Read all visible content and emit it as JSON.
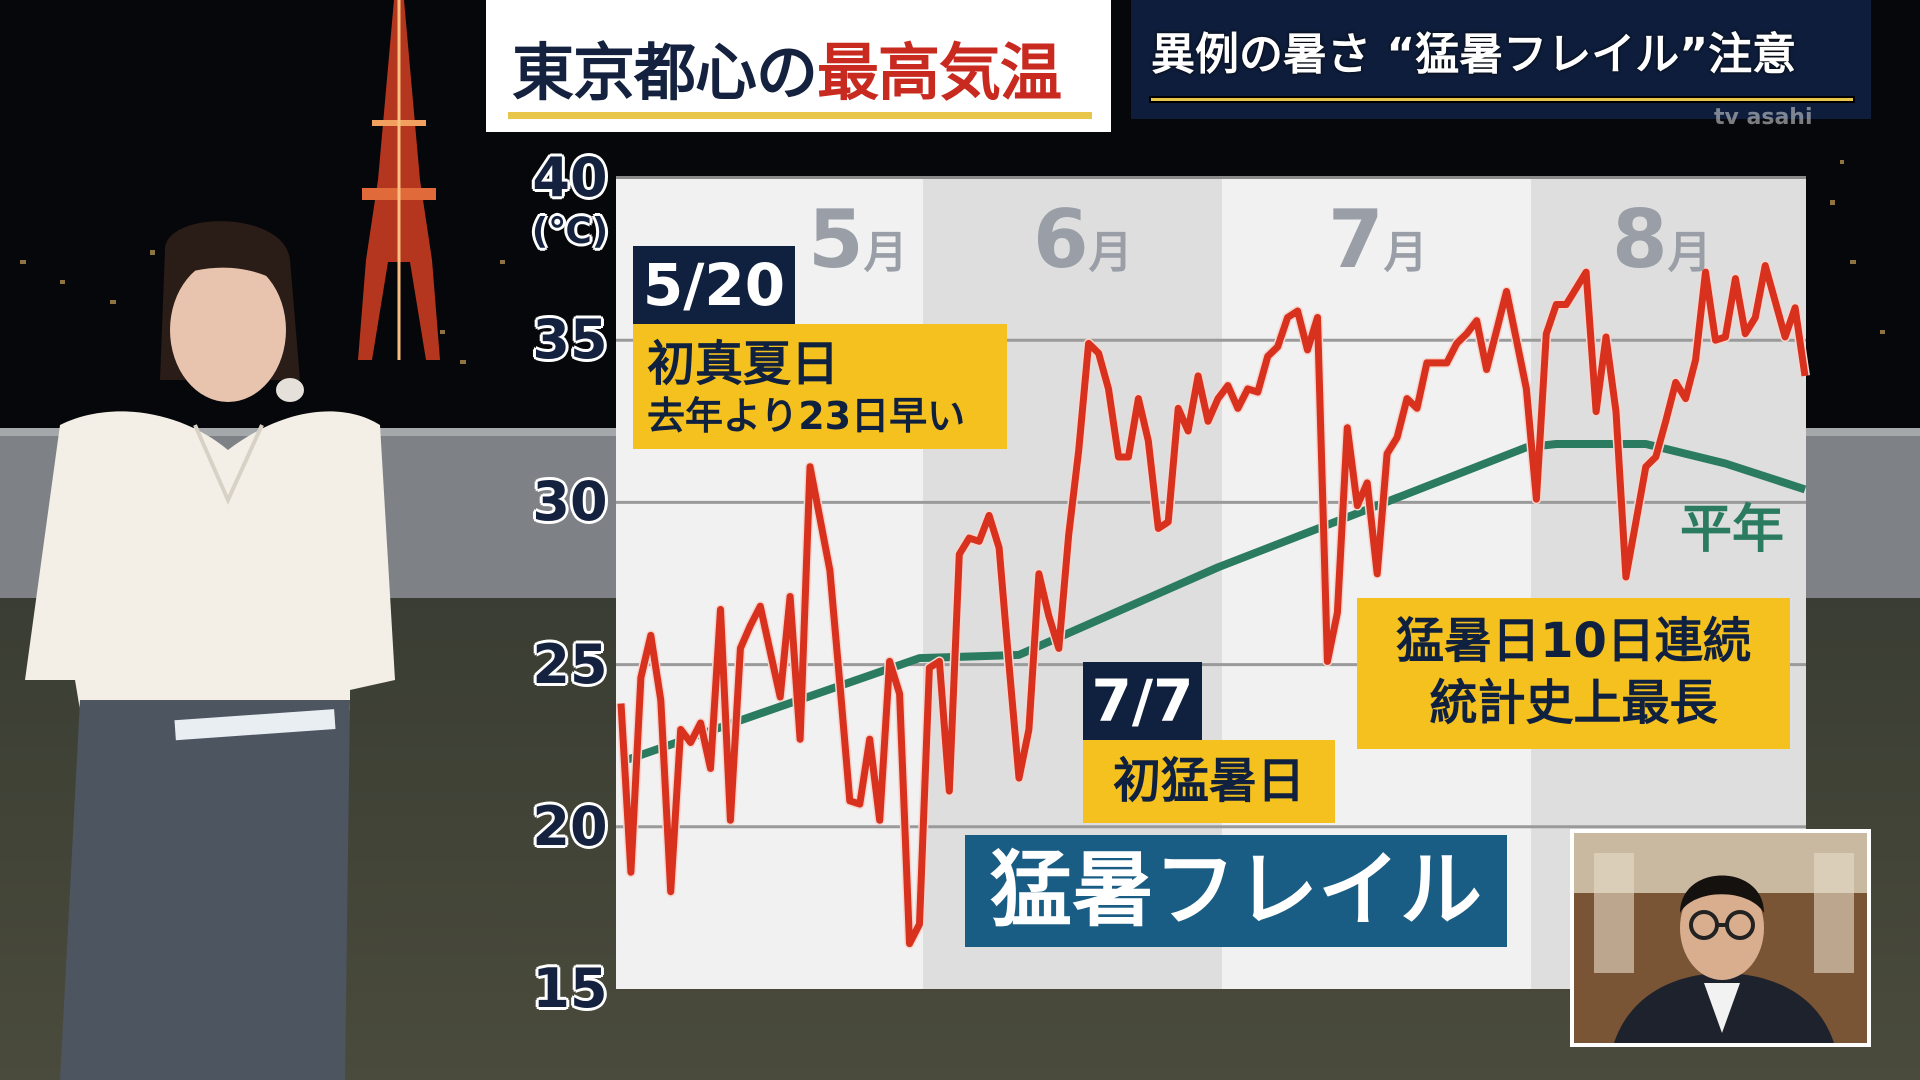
{
  "header": {
    "title_part1": "東京都心の",
    "title_part2": "最高気温",
    "banner": "異例の暑さ “猛暑フレイル”注意",
    "watermark": "tv asahi"
  },
  "annotations": {
    "may20_date": "5/20",
    "may20_line1": "初真夏日",
    "may20_line2": "去年より23日早い",
    "jul7_date": "7/7",
    "jul7_label": "初猛暑日",
    "streak_line1": "猛暑日10日連続",
    "streak_line2": "統計史上最長",
    "headline": "猛暑フレイル"
  },
  "colors": {
    "observed": "#d8321e",
    "normal": "#2a7b60",
    "navy": "#10203f",
    "yellow": "#f4c11e",
    "title_red": "#c92a1f",
    "headline_blue": "#1a5d84"
  },
  "chart_data": {
    "type": "line",
    "title": "東京都心の最高気温",
    "ylabel": "(℃)",
    "ylim": [
      15,
      40
    ],
    "yticks": [
      "40",
      "35",
      "30",
      "25",
      "20",
      "15"
    ],
    "ytick_values": [
      40,
      35,
      30,
      25,
      20,
      15
    ],
    "months": [
      "5月",
      "6月",
      "7月",
      "8月"
    ],
    "month_numbers": [
      "5",
      "6",
      "7",
      "8"
    ],
    "month_unit": "月",
    "grid": true,
    "series": [
      {
        "color": "#d8321e",
        "points": [
          [
            "5/1",
            23.8
          ],
          [
            "5/2",
            18.6
          ],
          [
            "5/3",
            24.6
          ],
          [
            "5/4",
            25.9
          ],
          [
            "5/5",
            23.9
          ],
          [
            "5/6",
            18.0
          ],
          [
            "5/7",
            23.0
          ],
          [
            "5/8",
            22.6
          ],
          [
            "5/9",
            23.2
          ],
          [
            "5/10",
            21.8
          ],
          [
            "5/11",
            26.7
          ],
          [
            "5/12",
            20.2
          ],
          [
            "5/13",
            25.5
          ],
          [
            "5/14",
            26.2
          ],
          [
            "5/15",
            26.8
          ],
          [
            "5/16",
            25.4
          ],
          [
            "5/17",
            24.0
          ],
          [
            "5/18",
            27.1
          ],
          [
            "5/19",
            22.7
          ],
          [
            "5/20",
            31.1
          ],
          [
            "5/21",
            29.5
          ],
          [
            "5/22",
            27.9
          ],
          [
            "5/23",
            24.4
          ],
          [
            "5/24",
            20.8
          ],
          [
            "5/25",
            20.7
          ],
          [
            "5/26",
            22.7
          ],
          [
            "5/27",
            20.2
          ],
          [
            "5/28",
            25.1
          ],
          [
            "5/29",
            24.1
          ],
          [
            "5/30",
            16.4
          ],
          [
            "5/31",
            17.0
          ],
          [
            "6/1",
            24.9
          ],
          [
            "6/2",
            25.1
          ],
          [
            "6/3",
            21.1
          ],
          [
            "6/4",
            28.4
          ],
          [
            "6/5",
            28.9
          ],
          [
            "6/6",
            28.8
          ],
          [
            "6/7",
            29.6
          ],
          [
            "6/8",
            28.6
          ],
          [
            "6/9",
            25.0
          ],
          [
            "6/10",
            21.5
          ],
          [
            "6/11",
            23.0
          ],
          [
            "6/12",
            27.8
          ],
          [
            "6/13",
            26.5
          ],
          [
            "6/14",
            25.5
          ],
          [
            "6/15",
            29.0
          ],
          [
            "6/16",
            31.6
          ],
          [
            "6/17",
            34.9
          ],
          [
            "6/18",
            34.6
          ],
          [
            "6/19",
            33.5
          ],
          [
            "6/20",
            31.4
          ],
          [
            "6/21",
            31.4
          ],
          [
            "6/22",
            33.2
          ],
          [
            "6/23",
            31.9
          ],
          [
            "6/24",
            29.2
          ],
          [
            "6/25",
            29.4
          ],
          [
            "6/26",
            32.9
          ],
          [
            "6/27",
            32.2
          ],
          [
            "6/28",
            33.9
          ],
          [
            "6/29",
            32.5
          ],
          [
            "6/30",
            33.2
          ],
          [
            "7/1",
            33.6
          ],
          [
            "7/2",
            32.9
          ],
          [
            "7/3",
            33.5
          ],
          [
            "7/4",
            33.4
          ],
          [
            "7/5",
            34.5
          ],
          [
            "7/6",
            34.8
          ],
          [
            "7/7",
            35.7
          ],
          [
            "7/8",
            35.9
          ],
          [
            "7/9",
            34.7
          ],
          [
            "7/10",
            35.7
          ],
          [
            "7/11",
            25.1
          ],
          [
            "7/12",
            26.6
          ],
          [
            "7/13",
            32.3
          ],
          [
            "7/14",
            29.9
          ],
          [
            "7/15",
            30.6
          ],
          [
            "7/16",
            27.8
          ],
          [
            "7/17",
            31.5
          ],
          [
            "7/18",
            32.0
          ],
          [
            "7/19",
            33.2
          ],
          [
            "7/20",
            32.9
          ],
          [
            "7/21",
            34.3
          ],
          [
            "7/22",
            34.3
          ],
          [
            "7/23",
            34.3
          ],
          [
            "7/24",
            34.9
          ],
          [
            "7/25",
            35.2
          ],
          [
            "7/26",
            35.6
          ],
          [
            "7/27",
            34.1
          ],
          [
            "7/28",
            35.3
          ],
          [
            "7/29",
            36.5
          ],
          [
            "7/30",
            35.0
          ],
          [
            "7/31",
            33.5
          ],
          [
            "8/1",
            30.1
          ],
          [
            "8/2",
            35.2
          ],
          [
            "8/3",
            36.1
          ],
          [
            "8/4",
            36.1
          ],
          [
            "8/5",
            36.6
          ],
          [
            "8/6",
            37.1
          ],
          [
            "8/7",
            32.8
          ],
          [
            "8/8",
            35.1
          ],
          [
            "8/9",
            32.8
          ],
          [
            "8/10",
            27.7
          ],
          [
            "8/11",
            29.4
          ],
          [
            "8/12",
            31.1
          ],
          [
            "8/13",
            31.4
          ],
          [
            "8/14",
            32.5
          ],
          [
            "8/15",
            33.7
          ],
          [
            "8/16",
            33.2
          ],
          [
            "8/17",
            34.4
          ],
          [
            "8/18",
            37.1
          ],
          [
            "8/19",
            35.0
          ],
          [
            "8/20",
            35.1
          ],
          [
            "8/21",
            36.9
          ],
          [
            "8/22",
            35.2
          ],
          [
            "8/23",
            35.7
          ],
          [
            "8/24",
            37.3
          ],
          [
            "8/25",
            36.2
          ],
          [
            "8/26",
            35.1
          ],
          [
            "8/27",
            36.0
          ],
          [
            "8/28",
            33.9
          ]
        ]
      },
      {
        "name": "平年",
        "color": "#2a7b60",
        "points": [
          [
            "5/1",
            22.0
          ],
          [
            "5/31",
            25.2
          ],
          [
            "6/10",
            25.3
          ],
          [
            "6/30",
            28.0
          ],
          [
            "7/16",
            29.9
          ],
          [
            "7/31",
            31.7
          ],
          [
            "8/3",
            31.8
          ],
          [
            "8/12",
            31.8
          ],
          [
            "8/20",
            31.2
          ],
          [
            "8/28",
            30.4
          ]
        ]
      }
    ]
  }
}
